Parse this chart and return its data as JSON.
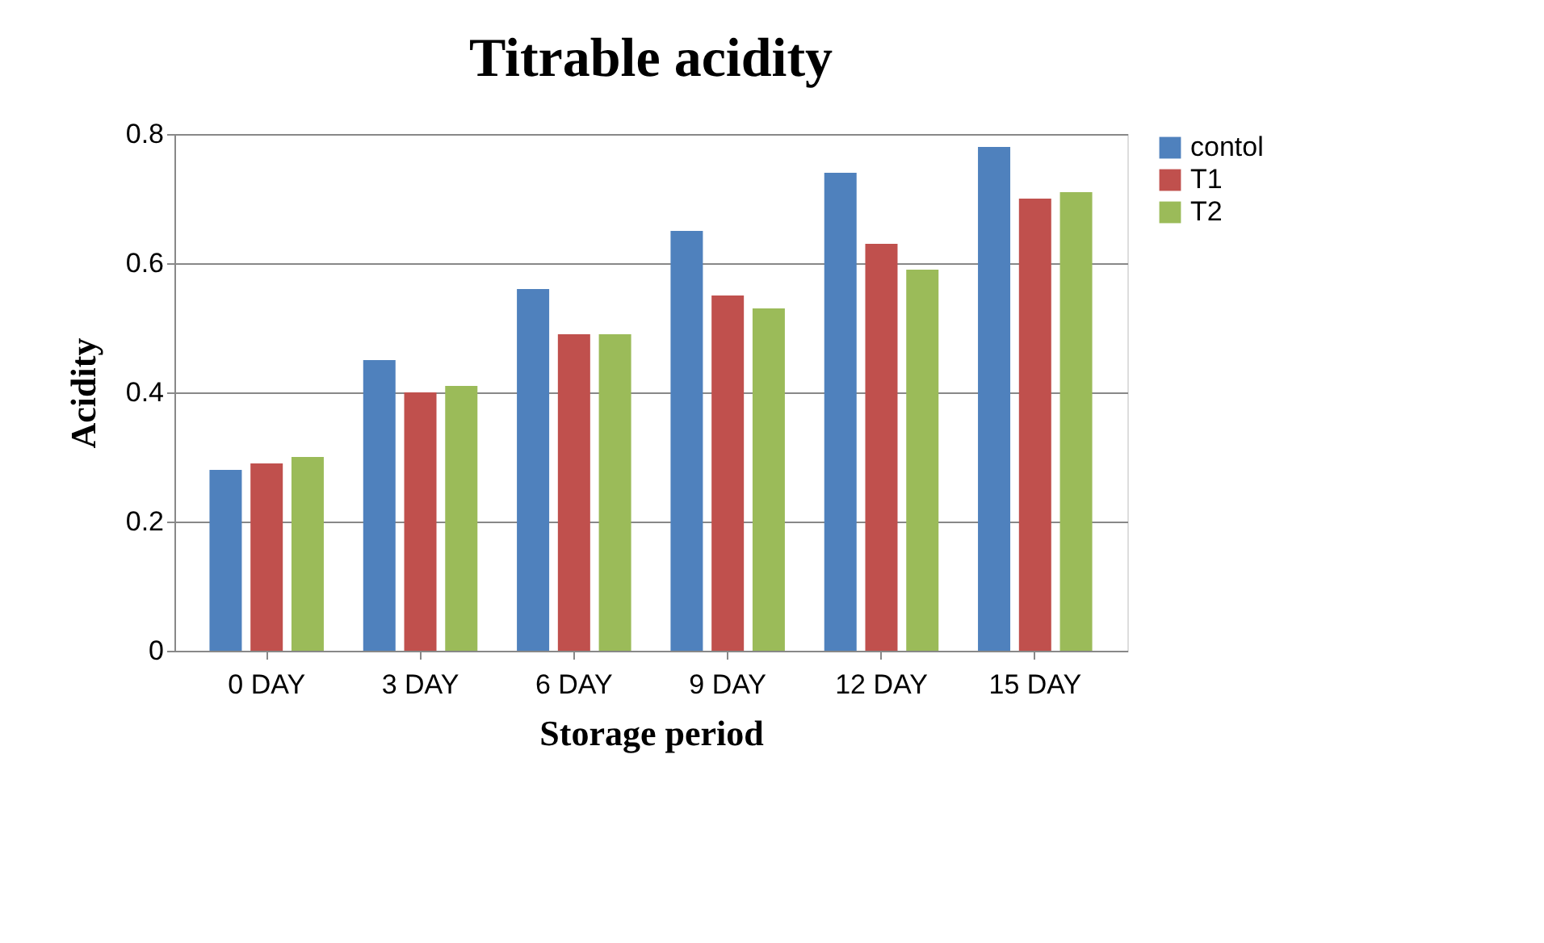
{
  "chart_data": {
    "type": "bar",
    "title": "Titrable acidity",
    "xlabel": "Storage period",
    "ylabel": "Acidity",
    "categories": [
      "0 DAY",
      "3 DAY",
      "6 DAY",
      "9 DAY",
      "12 DAY",
      "15 DAY"
    ],
    "series": [
      {
        "name": "contol",
        "color": "#4f81bd",
        "values": [
          0.28,
          0.45,
          0.56,
          0.65,
          0.74,
          0.78
        ]
      },
      {
        "name": "T1",
        "color": "#c0504d",
        "values": [
          0.29,
          0.4,
          0.49,
          0.55,
          0.63,
          0.7
        ]
      },
      {
        "name": "T2",
        "color": "#9bbb59",
        "values": [
          0.3,
          0.41,
          0.49,
          0.53,
          0.59,
          0.71
        ]
      }
    ],
    "ylim": [
      0,
      0.8
    ],
    "yticks": [
      0,
      0.2,
      0.4,
      0.6,
      0.8
    ],
    "grid": "y",
    "legend": "right"
  }
}
